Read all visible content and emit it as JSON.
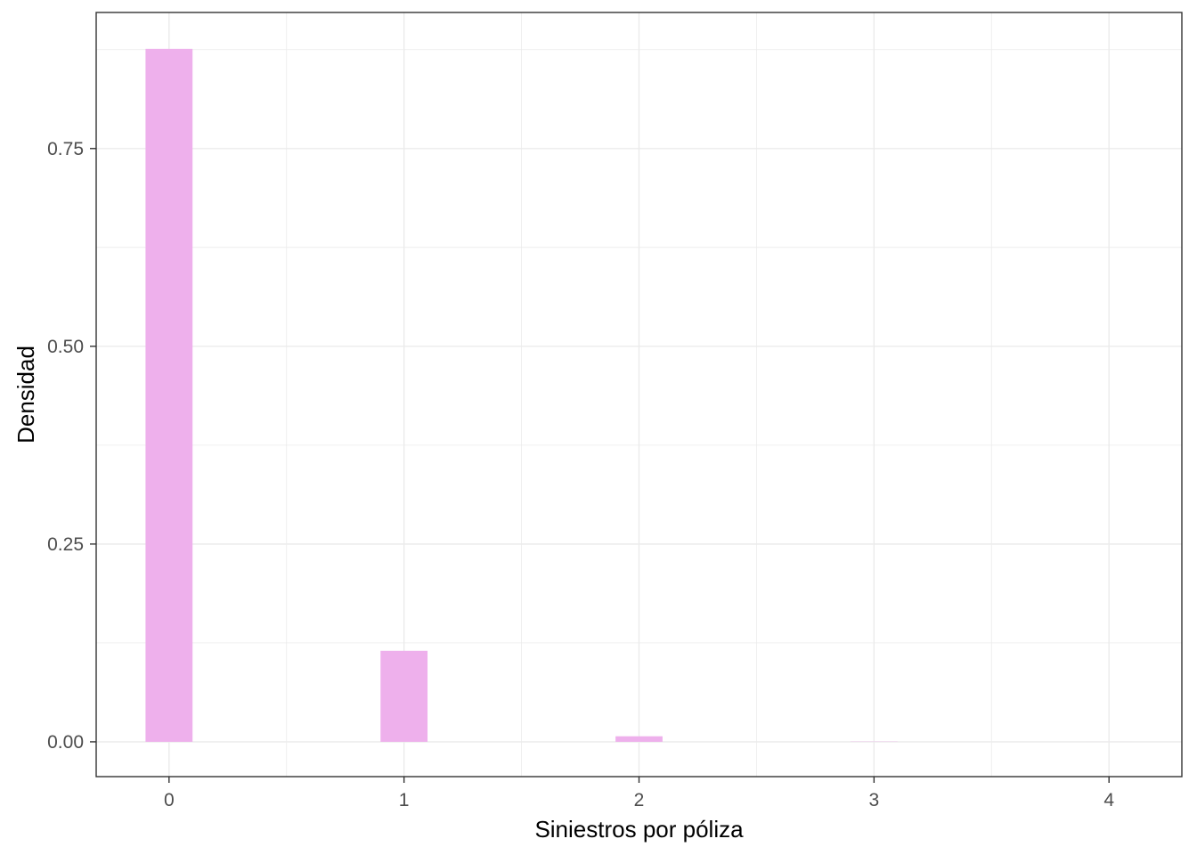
{
  "chart_data": {
    "type": "bar",
    "xlabel": "Siniestros por póliza",
    "ylabel": "Densidad",
    "categories": [
      "0",
      "1",
      "2",
      "3",
      "4"
    ],
    "x": [
      0,
      1,
      2,
      3,
      4
    ],
    "values": [
      0.876,
      0.115,
      0.007,
      0.0003,
      2e-05
    ],
    "bar_width": 0.2,
    "xlim": [
      -0.31,
      4.31
    ],
    "ylim": [
      -0.044,
      0.922
    ],
    "x_ticks": [
      0,
      1,
      2,
      3,
      4
    ],
    "x_tick_labels": [
      "0",
      "1",
      "2",
      "3",
      "4"
    ],
    "y_ticks": [
      0,
      0.25,
      0.5,
      0.75
    ],
    "y_tick_labels": [
      "0.00",
      "0.25",
      "0.50",
      "0.75"
    ],
    "grid": true,
    "colors": {
      "bar": "#EEB0EC",
      "grid": "#EBEBEB",
      "panel_border": "#333333",
      "tick_text": "#4D4D4D"
    }
  }
}
